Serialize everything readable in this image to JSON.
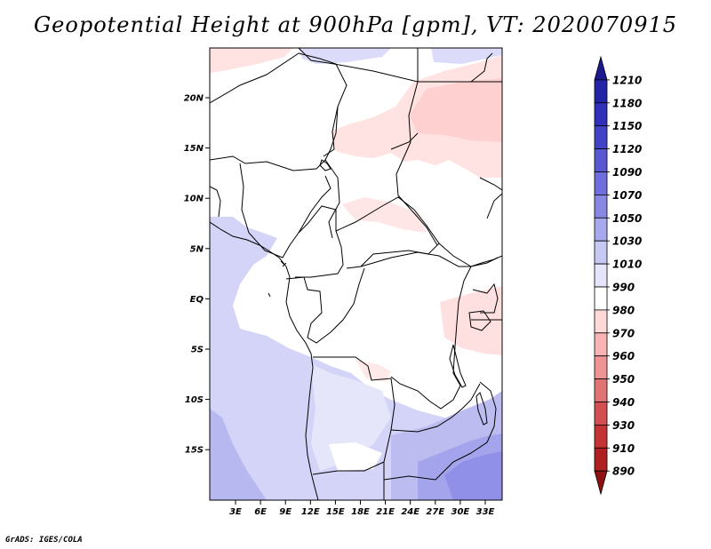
{
  "title": "Geopotential Height at 900hPa [gpm], VT: 2020070915",
  "footer": "GrADS: IGES/COLA",
  "axes": {
    "lat_labels": [
      "20N",
      "15N",
      "10N",
      "5N",
      "EQ",
      "5S",
      "10S",
      "15S"
    ],
    "lon_labels": [
      "3E",
      "6E",
      "9E",
      "12E",
      "15E",
      "18E",
      "21E",
      "24E",
      "27E",
      "30E",
      "33E"
    ]
  },
  "colorbar": {
    "levels": [
      "1210",
      "1180",
      "1150",
      "1120",
      "1090",
      "1070",
      "1050",
      "1030",
      "1010",
      "990",
      "980",
      "970",
      "960",
      "950",
      "940",
      "930",
      "910",
      "890"
    ],
    "colors": [
      "#1a1a8c",
      "#2323a8",
      "#3030bb",
      "#4242c8",
      "#5858d2",
      "#6e6edc",
      "#8888e4",
      "#a8a8ec",
      "#c8c8f4",
      "#e4e4fa",
      "#ffffff",
      "#ffd8d8",
      "#f8b4b4",
      "#ee9494",
      "#e07474",
      "#d25050",
      "#c43434",
      "#b02020",
      "#8e1010"
    ]
  },
  "map": {
    "variable": "Geopotential Height",
    "level": "900hPa",
    "units": "gpm",
    "valid_time": "2020070915"
  }
}
